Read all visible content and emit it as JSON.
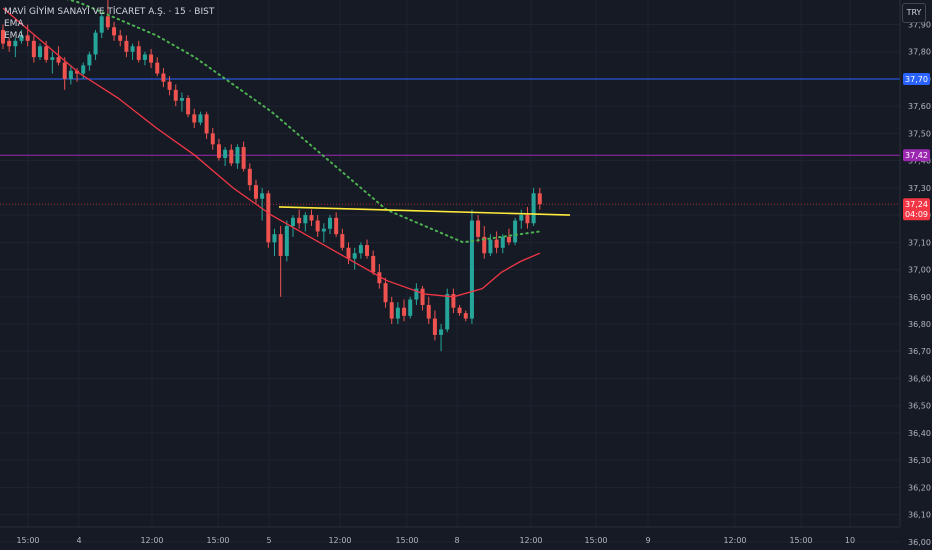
{
  "legend": {
    "symbol": "MAVİ GİYİM SANAYİ VE TİCARET A.Ş. · 15 · BIST",
    "ema1": "EMA",
    "ema2": "EMA"
  },
  "currency": "TRY",
  "colors": {
    "background": "#161a25",
    "grid": "#1f2331",
    "up": "#26a69a",
    "down": "#ef5350",
    "ema_red": "#f23645",
    "ema_green": "#4caf50",
    "hline_blue": "#2962ff",
    "hline_purple": "#9c27b0",
    "trend_yellow": "#ffeb3b"
  },
  "chart_data": {
    "type": "candlestick",
    "y_range": [
      35.97,
      37.99
    ],
    "y_ticks": [
      "37,90",
      "37,80",
      "37,70",
      "37,60",
      "37,50",
      "37,40",
      "37,30",
      "37,20",
      "37,10",
      "37,00",
      "36,90",
      "36,80",
      "36,70",
      "36,60",
      "36,50",
      "36,40",
      "36,30",
      "36,20",
      "36,10",
      "36,00"
    ],
    "x_ticks": [
      "15:00",
      "4",
      "12:00",
      "15:00",
      "5",
      "12:00",
      "15:00",
      "8",
      "12:00",
      "15:00",
      "9",
      "12:00",
      "15:00",
      "10"
    ],
    "price_tags": [
      {
        "label": "37,70",
        "value": 37.7,
        "color": "#2962ff"
      },
      {
        "label": "37,42",
        "value": 37.42,
        "color": "#9c27b0"
      },
      {
        "label": "37,24",
        "sublabel": "04:09",
        "value": 37.24,
        "color": "#f23645"
      }
    ],
    "horizontal_lines": [
      {
        "value": 37.7,
        "color": "#2962ff"
      },
      {
        "value": 37.42,
        "color": "#9c27b0"
      }
    ],
    "trend_line": {
      "from": [
        0,
        37.23
      ],
      "to": [
        1,
        37.2
      ],
      "color": "#ffeb3b"
    },
    "last_price": 37.24,
    "candles": [
      [
        37.88,
        37.9,
        37.81,
        37.83
      ],
      [
        37.84,
        37.85,
        37.8,
        37.82
      ],
      [
        37.82,
        37.85,
        37.78,
        37.84
      ],
      [
        37.84,
        37.88,
        37.83,
        37.86
      ],
      [
        37.86,
        37.9,
        37.82,
        37.84
      ],
      [
        37.84,
        37.86,
        37.76,
        37.78
      ],
      [
        37.78,
        37.83,
        37.77,
        37.82
      ],
      [
        37.82,
        37.84,
        37.76,
        37.77
      ],
      [
        37.77,
        37.8,
        37.72,
        37.78
      ],
      [
        37.78,
        37.82,
        37.75,
        37.76
      ],
      [
        37.76,
        37.78,
        37.66,
        37.7
      ],
      [
        37.7,
        37.75,
        37.68,
        37.73
      ],
      [
        37.73,
        37.74,
        37.69,
        37.72
      ],
      [
        37.72,
        37.76,
        37.7,
        37.75
      ],
      [
        37.75,
        37.8,
        37.73,
        37.79
      ],
      [
        37.79,
        37.88,
        37.77,
        37.87
      ],
      [
        37.87,
        37.94,
        37.85,
        37.93
      ],
      [
        37.93,
        37.99,
        37.88,
        37.89
      ],
      [
        37.89,
        37.91,
        37.84,
        37.86
      ],
      [
        37.86,
        37.88,
        37.82,
        37.84
      ],
      [
        37.84,
        37.86,
        37.78,
        37.8
      ],
      [
        37.8,
        37.83,
        37.77,
        37.82
      ],
      [
        37.82,
        37.84,
        37.76,
        37.77
      ],
      [
        37.77,
        37.8,
        37.75,
        37.79
      ],
      [
        37.79,
        37.81,
        37.74,
        37.76
      ],
      [
        37.76,
        37.78,
        37.71,
        37.72
      ],
      [
        37.72,
        37.74,
        37.67,
        37.69
      ],
      [
        37.69,
        37.71,
        37.64,
        37.66
      ],
      [
        37.66,
        37.68,
        37.6,
        37.62
      ],
      [
        37.62,
        37.65,
        37.58,
        37.63
      ],
      [
        37.63,
        37.64,
        37.56,
        37.57
      ],
      [
        37.57,
        37.59,
        37.52,
        37.54
      ],
      [
        37.54,
        37.58,
        37.53,
        37.57
      ],
      [
        37.57,
        37.58,
        37.48,
        37.5
      ],
      [
        37.5,
        37.52,
        37.44,
        37.46
      ],
      [
        37.46,
        37.48,
        37.4,
        37.41
      ],
      [
        37.41,
        37.45,
        37.38,
        37.44
      ],
      [
        37.44,
        37.46,
        37.38,
        37.39
      ],
      [
        37.39,
        37.46,
        37.37,
        37.45
      ],
      [
        37.45,
        37.47,
        37.36,
        37.37
      ],
      [
        37.37,
        37.39,
        37.29,
        37.31
      ],
      [
        37.31,
        37.33,
        37.24,
        37.26
      ],
      [
        37.26,
        37.3,
        37.18,
        37.28
      ],
      [
        37.28,
        37.29,
        37.08,
        37.1
      ],
      [
        37.1,
        37.15,
        37.05,
        37.13
      ],
      [
        37.13,
        37.16,
        36.9,
        37.05
      ],
      [
        37.05,
        37.18,
        37.03,
        37.16
      ],
      [
        37.16,
        37.2,
        37.12,
        37.19
      ],
      [
        37.19,
        37.22,
        37.15,
        37.17
      ],
      [
        37.17,
        37.21,
        37.14,
        37.2
      ],
      [
        37.2,
        37.22,
        37.16,
        37.18
      ],
      [
        37.18,
        37.2,
        37.12,
        37.14
      ],
      [
        37.14,
        37.17,
        37.1,
        37.15
      ],
      [
        37.15,
        37.2,
        37.13,
        37.19
      ],
      [
        37.19,
        37.21,
        37.12,
        37.13
      ],
      [
        37.13,
        37.15,
        37.07,
        37.08
      ],
      [
        37.08,
        37.1,
        37.02,
        37.04
      ],
      [
        37.04,
        37.08,
        37.0,
        37.06
      ],
      [
        37.06,
        37.1,
        37.04,
        37.09
      ],
      [
        37.09,
        37.11,
        37.04,
        37.05
      ],
      [
        37.05,
        37.07,
        36.98,
        36.99
      ],
      [
        36.99,
        37.02,
        36.93,
        36.95
      ],
      [
        36.95,
        36.97,
        36.86,
        36.88
      ],
      [
        36.88,
        36.9,
        36.8,
        36.82
      ],
      [
        36.82,
        36.88,
        36.8,
        36.86
      ],
      [
        36.86,
        36.89,
        36.81,
        36.83
      ],
      [
        36.83,
        36.9,
        36.82,
        36.89
      ],
      [
        36.89,
        36.95,
        36.87,
        36.93
      ],
      [
        36.93,
        36.94,
        36.85,
        36.87
      ],
      [
        36.87,
        36.9,
        36.8,
        36.82
      ],
      [
        36.82,
        36.85,
        36.74,
        36.76
      ],
      [
        36.76,
        36.8,
        36.7,
        36.78
      ],
      [
        36.78,
        36.93,
        36.77,
        36.91
      ],
      [
        36.91,
        36.93,
        36.84,
        36.86
      ],
      [
        36.86,
        36.87,
        36.83,
        36.84
      ],
      [
        36.84,
        36.85,
        36.81,
        36.82
      ],
      [
        36.82,
        37.22,
        36.8,
        37.18
      ],
      [
        37.18,
        37.2,
        37.1,
        37.12
      ],
      [
        37.12,
        37.16,
        37.04,
        37.06
      ],
      [
        37.06,
        37.13,
        37.05,
        37.11
      ],
      [
        37.11,
        37.14,
        37.06,
        37.08
      ],
      [
        37.08,
        37.13,
        37.06,
        37.12
      ],
      [
        37.12,
        37.15,
        37.09,
        37.1
      ],
      [
        37.1,
        37.19,
        37.09,
        37.18
      ],
      [
        37.18,
        37.22,
        37.15,
        37.2
      ],
      [
        37.2,
        37.23,
        37.15,
        37.17
      ],
      [
        37.17,
        37.3,
        37.16,
        37.28
      ],
      [
        37.28,
        37.3,
        37.22,
        37.24
      ]
    ],
    "ema_red": [
      [
        0,
        37.96
      ],
      [
        20,
        37.84
      ],
      [
        40,
        37.72
      ],
      [
        60,
        37.63
      ],
      [
        80,
        37.52
      ],
      [
        100,
        37.42
      ],
      [
        120,
        37.3
      ],
      [
        140,
        37.2
      ],
      [
        160,
        37.12
      ],
      [
        180,
        37.04
      ],
      [
        200,
        36.96
      ],
      [
        220,
        36.91
      ],
      [
        235,
        36.9
      ],
      [
        250,
        36.93
      ],
      [
        260,
        36.99
      ],
      [
        270,
        37.03
      ],
      [
        280,
        37.06
      ]
    ],
    "ema_green": [
      [
        0,
        38.06
      ],
      [
        20,
        38.02
      ],
      [
        40,
        37.98
      ],
      [
        60,
        37.92
      ],
      [
        80,
        37.86
      ],
      [
        100,
        37.78
      ],
      [
        120,
        37.68
      ],
      [
        140,
        37.58
      ],
      [
        160,
        37.46
      ],
      [
        180,
        37.34
      ],
      [
        200,
        37.22
      ],
      [
        220,
        37.16
      ],
      [
        240,
        37.1
      ],
      [
        260,
        37.12
      ],
      [
        280,
        37.14
      ]
    ]
  }
}
